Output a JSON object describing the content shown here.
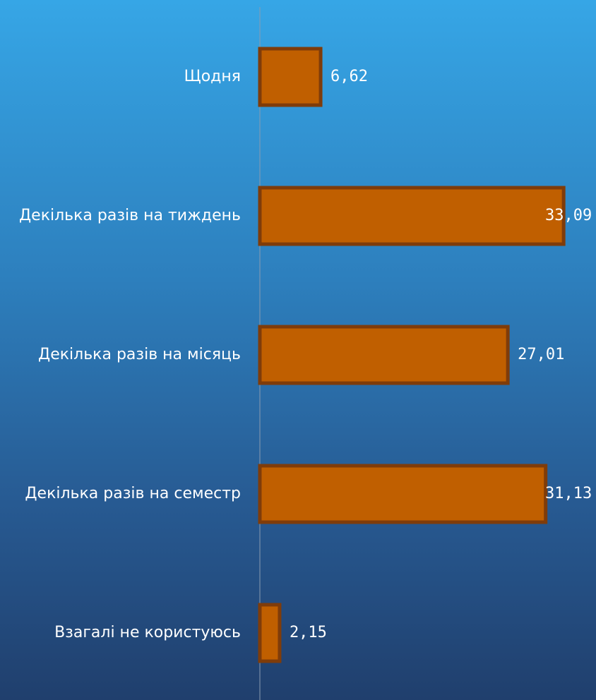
{
  "chart_data": {
    "type": "bar",
    "orientation": "horizontal",
    "categories": [
      "Щодня",
      "Декілька разів на тиждень",
      "Декілька разів на місяць",
      "Декілька разів на семестр",
      "Взагалі не користуюсь"
    ],
    "values": [
      6.62,
      33.09,
      27.01,
      31.13,
      2.15
    ],
    "value_labels": [
      "6,62",
      "33,09",
      "27,01",
      "31,13",
      "2,15"
    ],
    "xlim": [
      0,
      35
    ],
    "grid": false,
    "legend": "none"
  },
  "colors": {
    "bar_fill": "#c05f00",
    "bar_stroke": "#7f3c0a",
    "axis": "#8a9bb0",
    "text": "#ffffff",
    "background_top": "#36a6e6",
    "background_bottom": "#203f6d"
  }
}
